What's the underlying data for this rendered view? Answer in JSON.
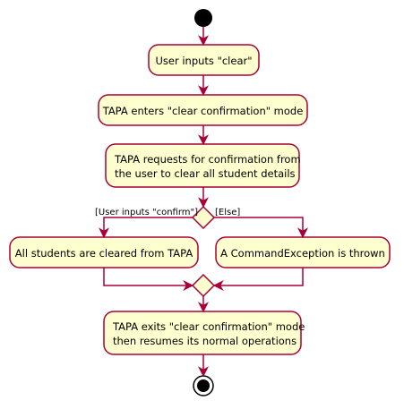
{
  "diagram": {
    "start_label": "",
    "activities": [
      {
        "id": "user-inputs-clear",
        "lines": [
          "User inputs \"clear\""
        ]
      },
      {
        "id": "enters-confirmation-mode",
        "lines": [
          "TAPA enters \"clear confirmation\" mode"
        ]
      },
      {
        "id": "requests-confirmation",
        "lines": [
          "TAPA requests for confirmation from",
          "the user to clear all student details"
        ]
      },
      {
        "id": "students-cleared",
        "lines": [
          "All students are cleared from TAPA"
        ]
      },
      {
        "id": "command-exception",
        "lines": [
          "A CommandException is thrown"
        ]
      },
      {
        "id": "exits-confirmation-mode",
        "lines": [
          "TAPA exits \"clear confirmation\" mode",
          "then resumes its normal operations"
        ]
      }
    ],
    "guards": {
      "left": "[User inputs \"confirm\"]",
      "right": "[Else]"
    }
  },
  "colors": {
    "activity_fill": "#FEFECE",
    "border": "#A80036",
    "text": "#000000",
    "node": "#000000"
  }
}
